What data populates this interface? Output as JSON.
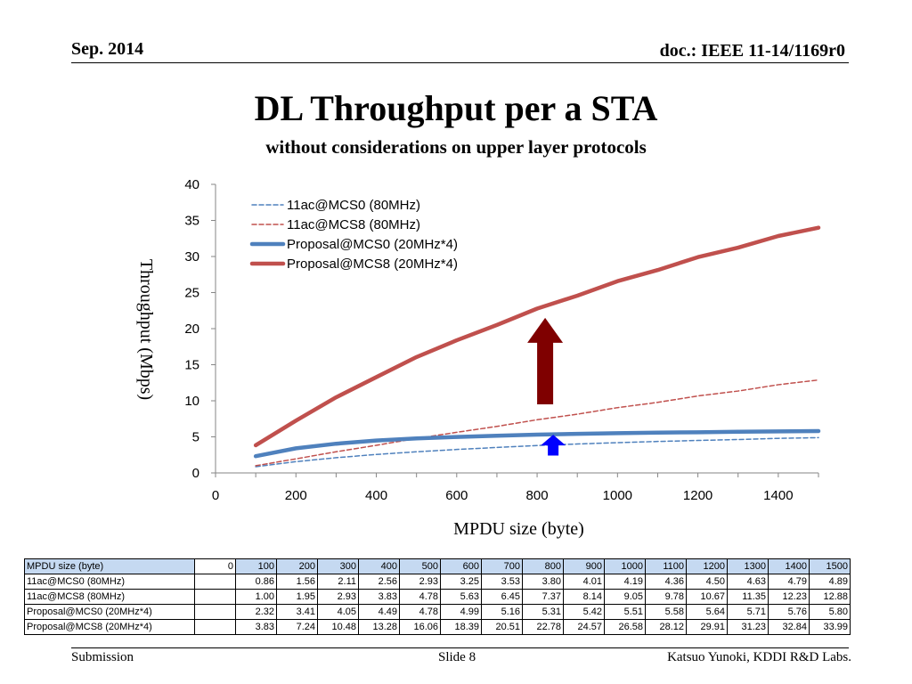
{
  "header": {
    "date": "Sep. 2014",
    "doc": "doc.: IEEE 11-14/1169r0"
  },
  "slide": {
    "title": "DL Throughput per a STA",
    "subtitle": "without considerations on upper layer protocols"
  },
  "footer": {
    "left": "Submission",
    "center": "Slide 8",
    "right": "Katsuo Yunoki, KDDI R&D Labs."
  },
  "chart_data": {
    "type": "line",
    "xlabel": "MPDU size (byte)",
    "ylabel": "Throughput (Mbps)",
    "xlim": [
      0,
      1500
    ],
    "ylim": [
      0,
      40
    ],
    "x_ticks": [
      0,
      200,
      400,
      600,
      800,
      1000,
      1200,
      1400
    ],
    "y_ticks": [
      0,
      5,
      10,
      15,
      20,
      25,
      30,
      35,
      40
    ],
    "grid": false,
    "legend_position": "top-left",
    "x": [
      100,
      200,
      300,
      400,
      500,
      600,
      700,
      800,
      900,
      1000,
      1100,
      1200,
      1300,
      1400,
      1500
    ],
    "series": [
      {
        "name": "11ac@MCS0 (80MHz)",
        "color": "#4f81bd",
        "style": "dashed",
        "values": [
          0.86,
          1.56,
          2.11,
          2.56,
          2.93,
          3.25,
          3.53,
          3.8,
          4.01,
          4.19,
          4.36,
          4.5,
          4.63,
          4.79,
          4.89
        ]
      },
      {
        "name": "11ac@MCS8 (80MHz)",
        "color": "#c0504d",
        "style": "dashed",
        "values": [
          1.0,
          1.95,
          2.93,
          3.83,
          4.78,
          5.63,
          6.45,
          7.37,
          8.14,
          9.05,
          9.78,
          10.67,
          11.35,
          12.23,
          12.88
        ]
      },
      {
        "name": "Proposal@MCS0 (20MHz*4)",
        "color": "#4f81bd",
        "style": "solid",
        "values": [
          2.32,
          3.41,
          4.05,
          4.49,
          4.78,
          4.99,
          5.16,
          5.31,
          5.42,
          5.51,
          5.58,
          5.64,
          5.71,
          5.76,
          5.8
        ]
      },
      {
        "name": "Proposal@MCS8 (20MHz*4)",
        "color": "#c0504d",
        "style": "solid",
        "values": [
          3.83,
          7.24,
          10.48,
          13.28,
          16.06,
          18.39,
          20.51,
          22.78,
          24.57,
          26.58,
          28.12,
          29.91,
          31.23,
          32.84,
          33.99
        ]
      }
    ],
    "annotations": [
      {
        "type": "arrow-up",
        "color": "#7f0000",
        "x": 820,
        "y_from": 9.5,
        "y_to": 21.5
      },
      {
        "type": "arrow-up",
        "color": "#0000ff",
        "x": 840,
        "y_from": 2.4,
        "y_to": 5.3
      }
    ]
  },
  "table": {
    "header_label": "MPDU size (byte)",
    "columns": [
      "0",
      "100",
      "200",
      "300",
      "400",
      "500",
      "600",
      "700",
      "800",
      "900",
      "1000",
      "1100",
      "1200",
      "1300",
      "1400",
      "1500"
    ],
    "rows": [
      {
        "label": "11ac@MCS0 (80MHz)",
        "cells": [
          "",
          "0.86",
          "1.56",
          "2.11",
          "2.56",
          "2.93",
          "3.25",
          "3.53",
          "3.80",
          "4.01",
          "4.19",
          "4.36",
          "4.50",
          "4.63",
          "4.79",
          "4.89"
        ]
      },
      {
        "label": "11ac@MCS8 (80MHz)",
        "cells": [
          "",
          "1.00",
          "1.95",
          "2.93",
          "3.83",
          "4.78",
          "5.63",
          "6.45",
          "7.37",
          "8.14",
          "9.05",
          "9.78",
          "10.67",
          "11.35",
          "12.23",
          "12.88"
        ]
      },
      {
        "label": "Proposal@MCS0 (20MHz*4)",
        "cells": [
          "",
          "2.32",
          "3.41",
          "4.05",
          "4.49",
          "4.78",
          "4.99",
          "5.16",
          "5.31",
          "5.42",
          "5.51",
          "5.58",
          "5.64",
          "5.71",
          "5.76",
          "5.80"
        ]
      },
      {
        "label": "Proposal@MCS8 (20MHz*4)",
        "cells": [
          "",
          "3.83",
          "7.24",
          "10.48",
          "13.28",
          "16.06",
          "18.39",
          "20.51",
          "22.78",
          "24.57",
          "26.58",
          "28.12",
          "29.91",
          "31.23",
          "32.84",
          "33.99"
        ]
      }
    ]
  }
}
